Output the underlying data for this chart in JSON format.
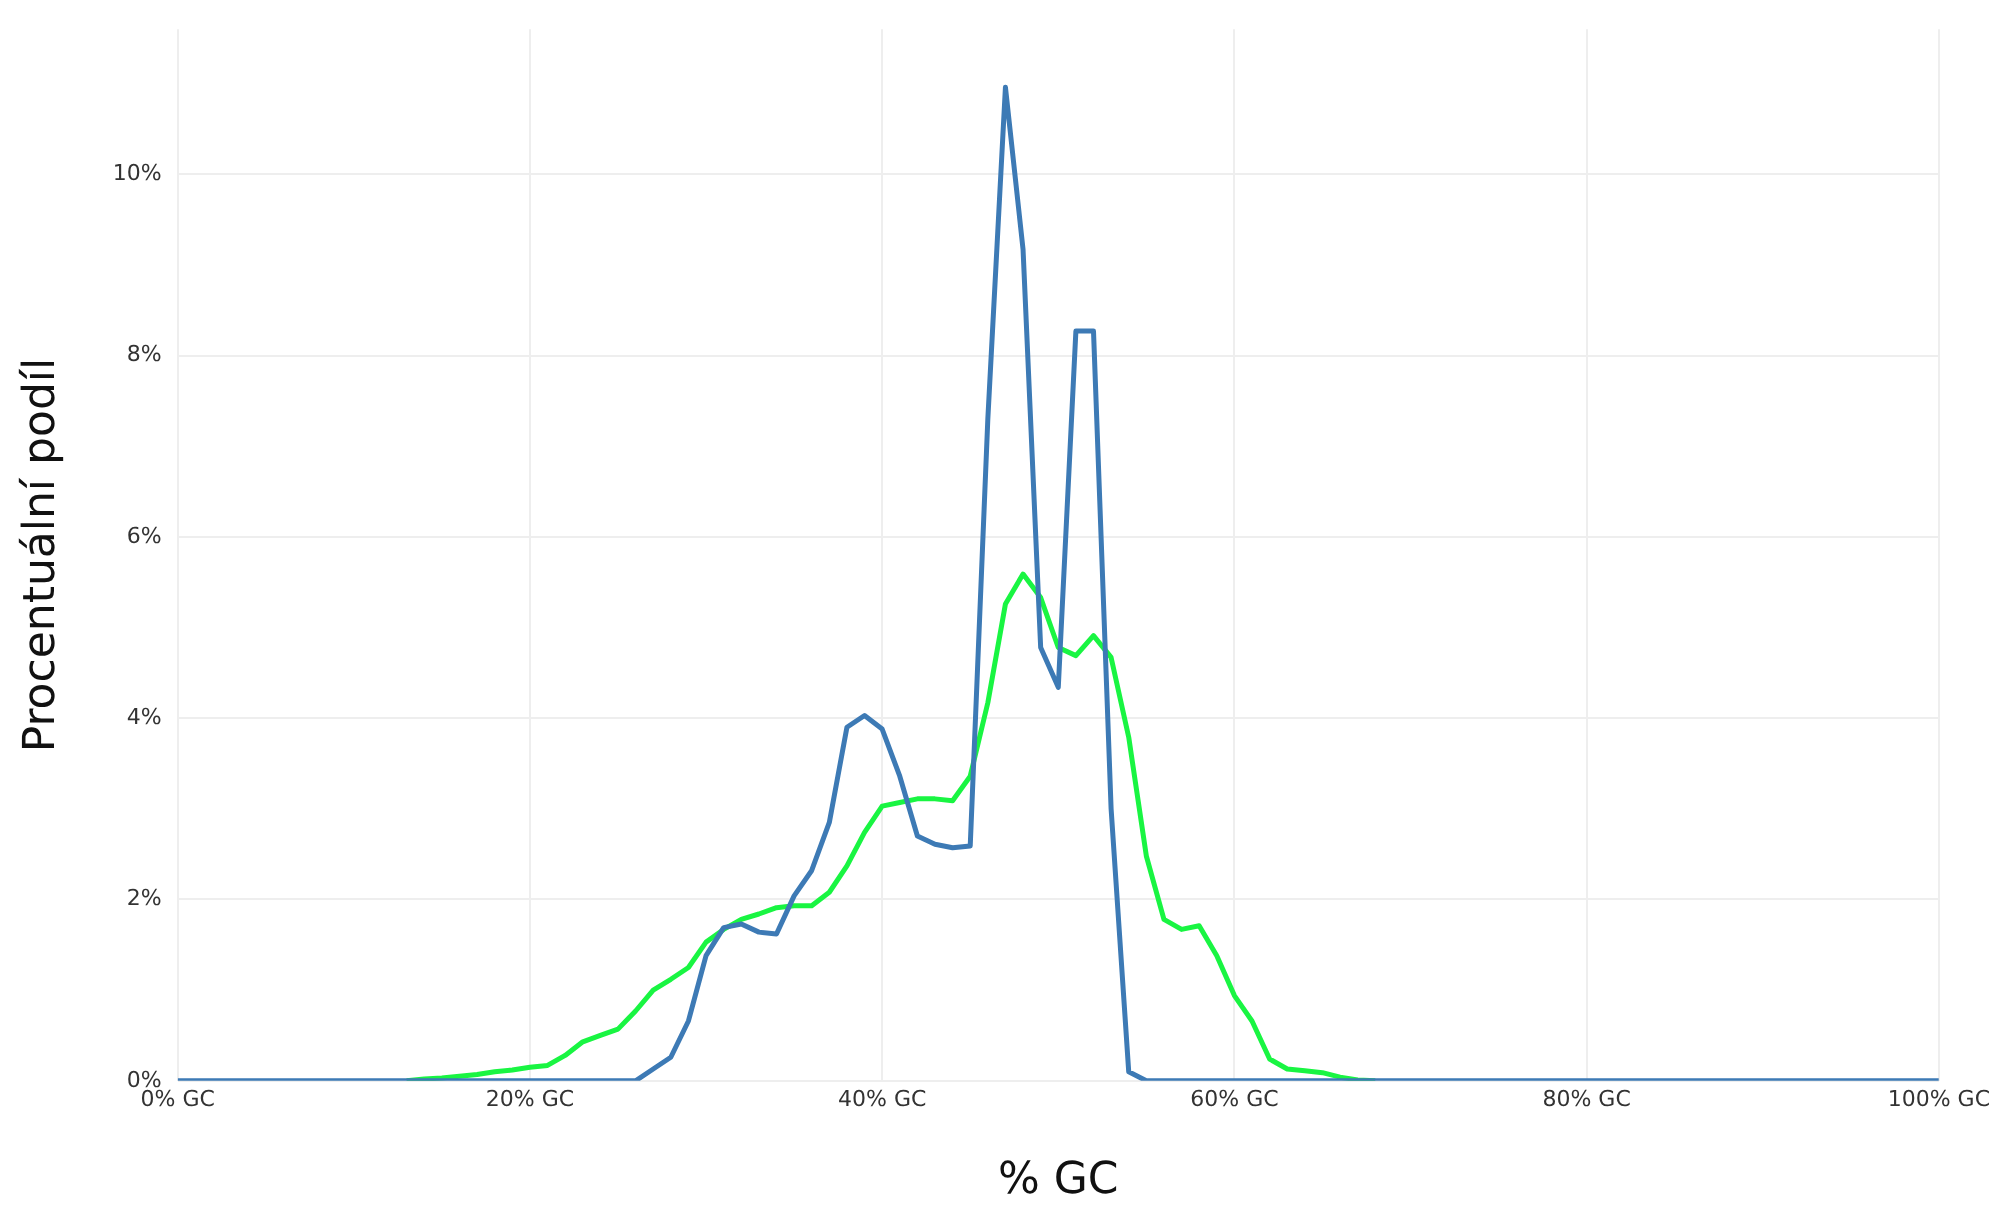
{
  "chart_data": {
    "type": "line",
    "xlabel": "% GC",
    "ylabel": "Procentuální podíl",
    "xlim": [
      0,
      100
    ],
    "xticks": [
      {
        "value": 0,
        "label": "0% GC"
      },
      {
        "value": 20,
        "label": "20% GC"
      },
      {
        "value": 40,
        "label": "40% GC"
      },
      {
        "value": 60,
        "label": "60% GC"
      },
      {
        "value": 80,
        "label": "80% GC"
      },
      {
        "value": 100,
        "label": "100% GC"
      }
    ],
    "ylim": [
      0,
      11.6
    ],
    "yticks": [
      {
        "value": 0,
        "label": "0%"
      },
      {
        "value": 2,
        "label": "2%"
      },
      {
        "value": 4,
        "label": "4%"
      },
      {
        "value": 6,
        "label": "6%"
      },
      {
        "value": 8,
        "label": "8%"
      },
      {
        "value": 10,
        "label": "10%"
      }
    ],
    "grid": true,
    "legend": false,
    "marker": "none",
    "line_style": "solid",
    "x": [
      0,
      5,
      10,
      13,
      14,
      15,
      16,
      17,
      18,
      19,
      20,
      21,
      22,
      23,
      24,
      25,
      26,
      27,
      28,
      29,
      30,
      31,
      32,
      33,
      34,
      35,
      36,
      37,
      38,
      39,
      40,
      41,
      42,
      43,
      44,
      45,
      46,
      47,
      48,
      49,
      50,
      51,
      52,
      53,
      54,
      55,
      56,
      57,
      58,
      59,
      60,
      61,
      62,
      63,
      64,
      65,
      66,
      67,
      68,
      70,
      80,
      90,
      100
    ],
    "series": [
      {
        "color": "#3d7ab5",
        "values": [
          0,
          0,
          0,
          0,
          0,
          0,
          0,
          0,
          0,
          0,
          0,
          0,
          0,
          0,
          0,
          0,
          0,
          0.13,
          0.26,
          0.66,
          1.38,
          1.69,
          1.73,
          1.64,
          1.62,
          2.04,
          2.32,
          2.85,
          3.9,
          4.03,
          3.88,
          3.36,
          2.7,
          2.61,
          2.57,
          2.59,
          7.3,
          10.96,
          9.17,
          4.78,
          4.34,
          8.27,
          8.27,
          3.0,
          0.1,
          0,
          0,
          0,
          0,
          0,
          0,
          0,
          0,
          0,
          0,
          0,
          0,
          0,
          0,
          0,
          0,
          0,
          0
        ]
      },
      {
        "color": "#19f542",
        "values": [
          null,
          null,
          null,
          0,
          0.02,
          0.03,
          0.05,
          0.07,
          0.1,
          0.12,
          0.15,
          0.17,
          0.28,
          0.43,
          0.5,
          0.57,
          0.77,
          1.0,
          1.12,
          1.25,
          1.53,
          1.67,
          1.78,
          1.84,
          1.91,
          1.93,
          1.93,
          2.08,
          2.37,
          2.74,
          3.03,
          3.07,
          3.11,
          3.11,
          3.09,
          3.36,
          4.17,
          5.26,
          5.59,
          5.33,
          4.78,
          4.69,
          4.91,
          4.67,
          3.79,
          2.48,
          1.78,
          1.67,
          1.71,
          1.38,
          0.94,
          0.66,
          0.24,
          0.13,
          0.11,
          0.09,
          0.04,
          0.01,
          0,
          null,
          null,
          null,
          null
        ]
      }
    ]
  }
}
